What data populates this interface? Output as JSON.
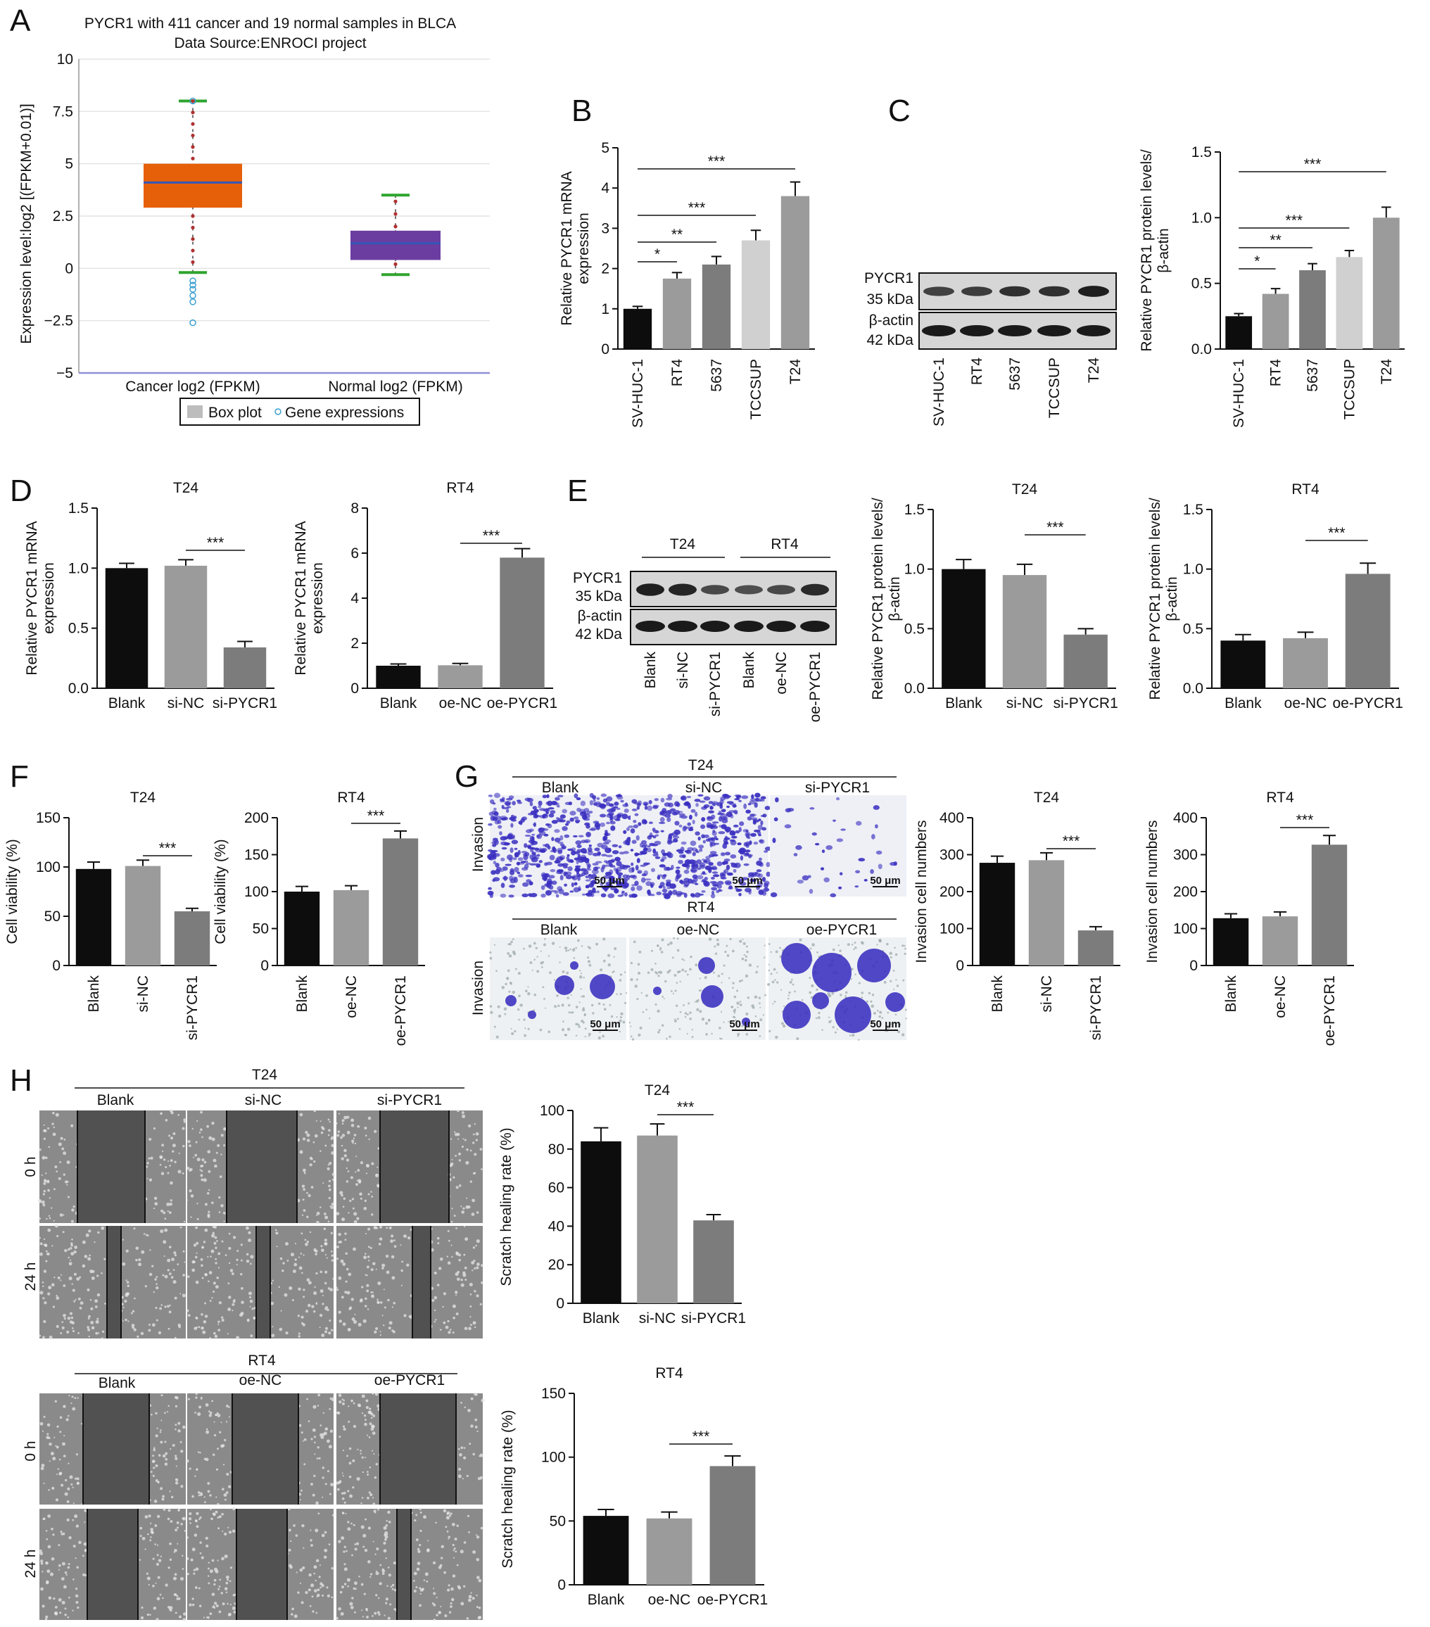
{
  "panel_letters": [
    "A",
    "B",
    "C",
    "D",
    "E",
    "F",
    "G",
    "H"
  ],
  "colors": {
    "black": "#0d0d0d",
    "dark_gray": "#7c7c7c",
    "mid_gray": "#9b9b9b",
    "light_gray": "#d0d0d0",
    "box_cancer": "#e6600a",
    "box_normal": "#6c3da0",
    "median_line": "#3357b8",
    "whisker": "#2ea52e",
    "outlier_dot": "#b03030",
    "open_outlier": "#3aa0d0",
    "crystal_violet": "#3a2fc0",
    "scratch_cells": "#6e6e6e",
    "scratch_gap": "#3d3d3d"
  },
  "panelA": {
    "title_line1": "PYCR1 with 411 cancer and 19 normal samples in BLCA",
    "title_line2": "Data Source:ENROCI project",
    "ylabel": "Expression level:log2 [(FPKM+0.01)]",
    "yticks": [
      "10",
      "7.5",
      "5",
      "2.5",
      "0",
      "−2.5",
      "−5"
    ],
    "categories": [
      "Cancer log2 (FPKM)",
      "Normal log2 (FPKM)"
    ],
    "legend": {
      "box": "Box plot",
      "points": "Gene expressions"
    }
  },
  "blot_labels": {
    "pycr1": "PYCR1",
    "pycr1_kda": "35 kDa",
    "actin": "β-actin",
    "actin_kda": "42 kDa"
  },
  "panelE_groups": [
    "T24",
    "RT4"
  ],
  "panelE_lanes": [
    "Blank",
    "si-NC",
    "si-PYCR1",
    "Blank",
    "oe-NC",
    "oe-PYCR1"
  ],
  "panelG": {
    "group_top": "T24",
    "group_bottom": "RT4",
    "row_label": "Invasion",
    "top_labels": [
      "Blank",
      "si-NC",
      "si-PYCR1"
    ],
    "bottom_labels": [
      "Blank",
      "oe-NC",
      "oe-PYCR1"
    ],
    "scale": "50 μm"
  },
  "panelH": {
    "group_top": "T24",
    "group_bottom": "RT4",
    "top_labels": [
      "Blank",
      "si-NC",
      "si-PYCR1"
    ],
    "bottom_labels": [
      "Blank",
      "oe-NC",
      "oe-PYCR1"
    ],
    "times": [
      "0 h",
      "24 h"
    ]
  },
  "chart_data": [
    {
      "id": "A",
      "type": "box",
      "title": "PYCR1 with 411 cancer and 19 normal samples in BLCA",
      "ylabel": "Expression level:log2 [(FPKM+0.01)]",
      "ylim": [
        -5,
        10
      ],
      "series": [
        {
          "name": "Cancer log2 (FPKM)",
          "whisker_low": -0.2,
          "q1": 2.9,
          "median": 4.1,
          "q3": 5.0,
          "whisker_high": 8.0,
          "outliers": [
            -0.6,
            -0.8,
            -1.0,
            -1.3,
            -1.6,
            -2.6,
            8.0
          ]
        },
        {
          "name": "Normal log2 (FPKM)",
          "whisker_low": -0.3,
          "q1": 0.4,
          "median": 1.2,
          "q3": 1.8,
          "whisker_high": 3.5,
          "outliers": []
        }
      ]
    },
    {
      "id": "B",
      "type": "bar",
      "ylabel": "Relative PYCR1 mRNA expression",
      "ylim": [
        0,
        5
      ],
      "yticks": [
        "0",
        "1",
        "2",
        "3",
        "4",
        "5"
      ],
      "categories": [
        "SV-HUC-1",
        "RT4",
        "5637",
        "TCCSUP",
        "T24"
      ],
      "values": [
        1.0,
        1.75,
        2.1,
        2.7,
        3.8
      ],
      "errors": [
        0.06,
        0.15,
        0.2,
        0.25,
        0.35
      ],
      "colors": [
        "#0d0d0d",
        "#9b9b9b",
        "#7c7c7c",
        "#d0d0d0",
        "#9b9b9b"
      ],
      "sig": [
        {
          "from": 0,
          "to": 1,
          "label": "*"
        },
        {
          "from": 0,
          "to": 2,
          "label": "**"
        },
        {
          "from": 0,
          "to": 3,
          "label": "***"
        },
        {
          "from": 0,
          "to": 4,
          "label": "***"
        }
      ]
    },
    {
      "id": "C",
      "type": "bar",
      "ylabel": "Relative PYCR1 protein levels/β-actin",
      "ylim": [
        0,
        1.5
      ],
      "yticks": [
        "0.0",
        "0.5",
        "1.0",
        "1.5"
      ],
      "categories": [
        "SV-HUC-1",
        "RT4",
        "5637",
        "TCCSUP",
        "T24"
      ],
      "values": [
        0.25,
        0.42,
        0.6,
        0.7,
        1.0
      ],
      "errors": [
        0.02,
        0.04,
        0.05,
        0.05,
        0.08
      ],
      "colors": [
        "#0d0d0d",
        "#9b9b9b",
        "#7c7c7c",
        "#d0d0d0",
        "#9b9b9b"
      ],
      "sig": [
        {
          "from": 0,
          "to": 1,
          "label": "*"
        },
        {
          "from": 0,
          "to": 2,
          "label": "**"
        },
        {
          "from": 0,
          "to": 3,
          "label": "***"
        },
        {
          "from": 0,
          "to": 4,
          "label": "***"
        }
      ]
    },
    {
      "id": "D1",
      "type": "bar",
      "title": "T24",
      "ylabel": "Relative PYCR1 mRNA expression",
      "ylim": [
        0,
        1.5
      ],
      "yticks": [
        "0.0",
        "0.5",
        "1.0",
        "1.5"
      ],
      "categories": [
        "Blank",
        "si-NC",
        "si-PYCR1"
      ],
      "values": [
        1.0,
        1.02,
        0.34
      ],
      "errors": [
        0.04,
        0.05,
        0.05
      ],
      "colors": [
        "#0d0d0d",
        "#9b9b9b",
        "#7c7c7c"
      ],
      "sig": [
        {
          "from": 1,
          "to": 2,
          "label": "***"
        }
      ]
    },
    {
      "id": "D2",
      "type": "bar",
      "title": "RT4",
      "ylabel": "Relative PYCR1 mRNA expression",
      "ylim": [
        0,
        8
      ],
      "yticks": [
        "0",
        "2",
        "4",
        "6",
        "8"
      ],
      "categories": [
        "Blank",
        "oe-NC",
        "oe-PYCR1"
      ],
      "values": [
        1.0,
        1.02,
        5.8
      ],
      "errors": [
        0.08,
        0.08,
        0.4
      ],
      "colors": [
        "#0d0d0d",
        "#9b9b9b",
        "#7c7c7c"
      ],
      "sig": [
        {
          "from": 1,
          "to": 2,
          "label": "***"
        }
      ]
    },
    {
      "id": "E1",
      "type": "bar",
      "title": "T24",
      "ylabel": "Relative PYCR1 protein levels/β-actin",
      "ylim": [
        0,
        1.5
      ],
      "yticks": [
        "0.0",
        "0.5",
        "1.0",
        "1.5"
      ],
      "categories": [
        "Blank",
        "si-NC",
        "si-PYCR1"
      ],
      "values": [
        1.0,
        0.95,
        0.45
      ],
      "errors": [
        0.08,
        0.09,
        0.05
      ],
      "colors": [
        "#0d0d0d",
        "#9b9b9b",
        "#7c7c7c"
      ],
      "sig": [
        {
          "from": 1,
          "to": 2,
          "label": "***"
        }
      ]
    },
    {
      "id": "E2",
      "type": "bar",
      "title": "RT4",
      "ylabel": "Relative PYCR1 protein levels/β-actin",
      "ylim": [
        0,
        1.5
      ],
      "yticks": [
        "0.0",
        "0.5",
        "1.0",
        "1.5"
      ],
      "categories": [
        "Blank",
        "oe-NC",
        "oe-PYCR1"
      ],
      "values": [
        0.4,
        0.42,
        0.96
      ],
      "errors": [
        0.05,
        0.05,
        0.09
      ],
      "colors": [
        "#0d0d0d",
        "#9b9b9b",
        "#7c7c7c"
      ],
      "sig": [
        {
          "from": 1,
          "to": 2,
          "label": "***"
        }
      ]
    },
    {
      "id": "F1",
      "type": "bar",
      "title": "T24",
      "ylabel": "Cell viability (%)",
      "ylim": [
        0,
        150
      ],
      "yticks": [
        "0",
        "50",
        "100",
        "150"
      ],
      "categories": [
        "Blank",
        "si-NC",
        "si-PYCR1"
      ],
      "values": [
        98,
        101,
        55
      ],
      "errors": [
        7,
        6,
        3
      ],
      "colors": [
        "#0d0d0d",
        "#9b9b9b",
        "#7c7c7c"
      ],
      "sig": [
        {
          "from": 1,
          "to": 2,
          "label": "***"
        }
      ]
    },
    {
      "id": "F2",
      "type": "bar",
      "title": "RT4",
      "ylabel": "Cell viability (%)",
      "ylim": [
        0,
        200
      ],
      "yticks": [
        "0",
        "50",
        "100",
        "150",
        "200"
      ],
      "categories": [
        "Blank",
        "oe-NC",
        "oe-PYCR1"
      ],
      "values": [
        100,
        102,
        172
      ],
      "errors": [
        7,
        6,
        10
      ],
      "colors": [
        "#0d0d0d",
        "#9b9b9b",
        "#7c7c7c"
      ],
      "sig": [
        {
          "from": 1,
          "to": 2,
          "label": "***"
        }
      ]
    },
    {
      "id": "G1",
      "type": "bar",
      "title": "T24",
      "ylabel": "Invasion cell numbers",
      "ylim": [
        0,
        400
      ],
      "yticks": [
        "0",
        "100",
        "200",
        "300",
        "400"
      ],
      "categories": [
        "Blank",
        "si-NC",
        "si-PYCR1"
      ],
      "values": [
        278,
        285,
        95
      ],
      "errors": [
        18,
        20,
        10
      ],
      "colors": [
        "#0d0d0d",
        "#9b9b9b",
        "#7c7c7c"
      ],
      "sig": [
        {
          "from": 1,
          "to": 2,
          "label": "***"
        }
      ]
    },
    {
      "id": "G2",
      "type": "bar",
      "title": "RT4",
      "ylabel": "Invasion cell numbers",
      "ylim": [
        0,
        400
      ],
      "yticks": [
        "0",
        "100",
        "200",
        "300",
        "400"
      ],
      "categories": [
        "Blank",
        "oe-NC",
        "oe-PYCR1"
      ],
      "values": [
        128,
        133,
        327
      ],
      "errors": [
        12,
        12,
        25
      ],
      "colors": [
        "#0d0d0d",
        "#9b9b9b",
        "#7c7c7c"
      ],
      "sig": [
        {
          "from": 1,
          "to": 2,
          "label": "***"
        }
      ]
    },
    {
      "id": "H1",
      "type": "bar",
      "title": "T24",
      "ylabel": "Scratch healing rate (%)",
      "ylim": [
        0,
        100
      ],
      "yticks": [
        "0",
        "20",
        "40",
        "60",
        "80",
        "100"
      ],
      "categories": [
        "Blank",
        "si-NC",
        "si-PYCR1"
      ],
      "values": [
        84,
        87,
        43
      ],
      "errors": [
        7,
        6,
        3
      ],
      "colors": [
        "#0d0d0d",
        "#9b9b9b",
        "#7c7c7c"
      ],
      "sig": [
        {
          "from": 1,
          "to": 2,
          "label": "***"
        }
      ]
    },
    {
      "id": "H2",
      "type": "bar",
      "title": "RT4",
      "ylabel": "Scratch healing rate (%)",
      "ylim": [
        0,
        150
      ],
      "yticks": [
        "0",
        "50",
        "100",
        "150"
      ],
      "categories": [
        "Blank",
        "oe-NC",
        "oe-PYCR1"
      ],
      "values": [
        54,
        52,
        93
      ],
      "errors": [
        5,
        5,
        8
      ],
      "colors": [
        "#0d0d0d",
        "#9b9b9b",
        "#7c7c7c"
      ],
      "sig": [
        {
          "from": 1,
          "to": 2,
          "label": "***"
        }
      ]
    }
  ]
}
